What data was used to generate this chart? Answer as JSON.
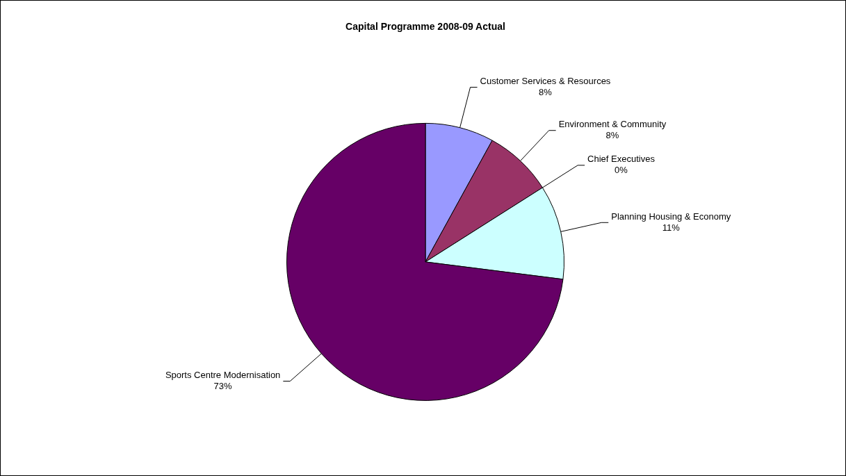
{
  "chart_data": {
    "type": "pie",
    "title": "Capital Programme 2008-09 Actual",
    "categories": [
      "Customer Services & Resources",
      "Environment & Community",
      "Chief Executives",
      "Planning Housing & Economy",
      "Sports Centre Modernisation"
    ],
    "values": [
      8,
      8,
      0,
      11,
      73
    ],
    "colors": [
      "#9999ff",
      "#993366",
      "#ffffcc",
      "#ccffff",
      "#660066"
    ],
    "value_labels": [
      "8%",
      "8%",
      "0%",
      "11%",
      "73%"
    ]
  }
}
